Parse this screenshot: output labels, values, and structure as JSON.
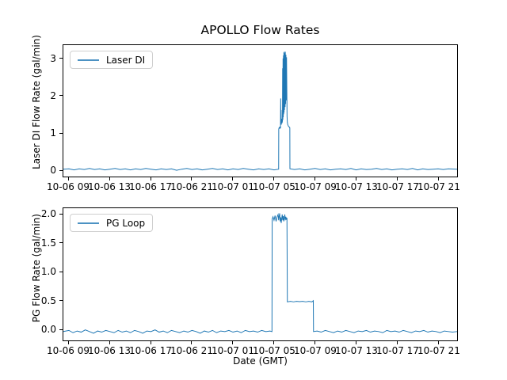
{
  "figure": {
    "background": "#ffffff"
  },
  "chart_data": [
    {
      "type": "line",
      "subplot": "top",
      "title": "APOLLO Flow Rates",
      "ylabel": "Laser DI Flow Rate (gal/min)",
      "legend": {
        "label": "Laser DI",
        "position": "upper left"
      },
      "line_color": "#1f77b4",
      "grid": false,
      "xlim_hours": [
        8.46,
        46.85
      ],
      "ylim": [
        -0.19,
        3.38
      ],
      "yticks": [
        0,
        1,
        2,
        3
      ],
      "ytick_labels": [
        "0",
        "1",
        "2",
        "3"
      ],
      "xtick_hours": [
        9,
        13,
        17,
        21,
        25,
        29,
        33,
        37,
        41,
        45
      ],
      "xtick_labels": [
        "10-06 09",
        "10-06 13",
        "10-06 17",
        "10-06 21",
        "10-07 01",
        "10-07 05",
        "10-07 09",
        "10-07 13",
        "10-07 17",
        "10-07 21"
      ],
      "series": [
        {
          "name": "Laser DI",
          "points": [
            [
              8.46,
              0.01
            ],
            [
              9,
              0.02
            ],
            [
              9.5,
              -0.01
            ],
            [
              10,
              0.02
            ],
            [
              10.5,
              0
            ],
            [
              11,
              0.03
            ],
            [
              11.5,
              0
            ],
            [
              12,
              0.02
            ],
            [
              12.5,
              -0.01
            ],
            [
              13,
              0.01
            ],
            [
              13.5,
              0.03
            ],
            [
              14,
              0
            ],
            [
              14.5,
              0.02
            ],
            [
              15,
              -0.01
            ],
            [
              15.5,
              0.02
            ],
            [
              16,
              0
            ],
            [
              16.5,
              0.03
            ],
            [
              17,
              0.01
            ],
            [
              17.5,
              -0.01
            ],
            [
              18,
              0.02
            ],
            [
              18.5,
              0
            ],
            [
              19,
              0.02
            ],
            [
              19.5,
              -0.02
            ],
            [
              20,
              0.01
            ],
            [
              20.5,
              0.03
            ],
            [
              21,
              0
            ],
            [
              21.5,
              0.02
            ],
            [
              22,
              -0.01
            ],
            [
              22.5,
              0.01
            ],
            [
              23,
              0.03
            ],
            [
              23.5,
              0
            ],
            [
              24,
              0.02
            ],
            [
              24.5,
              -0.01
            ],
            [
              25,
              0.02
            ],
            [
              25.5,
              0
            ],
            [
              26,
              0.03
            ],
            [
              26.5,
              0.01
            ],
            [
              27,
              -0.01
            ],
            [
              27.5,
              0.02
            ],
            [
              28,
              0
            ],
            [
              28.5,
              0.02
            ],
            [
              29,
              -0.01
            ],
            [
              29.45,
              0.01
            ],
            [
              29.46,
              1.1
            ],
            [
              29.5,
              1.14
            ],
            [
              29.55,
              1.12
            ],
            [
              29.6,
              1.16
            ],
            [
              29.63,
              1.12
            ],
            [
              29.65,
              1.93
            ],
            [
              29.67,
              1.3
            ],
            [
              29.69,
              1.62
            ],
            [
              29.71,
              1.22
            ],
            [
              29.74,
              1.38
            ],
            [
              29.78,
              1.26
            ],
            [
              29.82,
              1.32
            ],
            [
              29.84,
              2.75
            ],
            [
              29.86,
              1.35
            ],
            [
              29.88,
              3.02
            ],
            [
              29.9,
              1.42
            ],
            [
              29.92,
              3.1
            ],
            [
              29.94,
              1.5
            ],
            [
              29.96,
              3.18
            ],
            [
              29.98,
              1.55
            ],
            [
              30,
              3.2
            ],
            [
              30.02,
              1.62
            ],
            [
              30.05,
              3.16
            ],
            [
              30.08,
              1.7
            ],
            [
              30.1,
              3.2
            ],
            [
              30.13,
              1.78
            ],
            [
              30.16,
              3.12
            ],
            [
              30.19,
              1.88
            ],
            [
              30.22,
              3.05
            ],
            [
              30.25,
              2.1
            ],
            [
              30.27,
              1.45
            ],
            [
              30.3,
              1.28
            ],
            [
              30.34,
              1.22
            ],
            [
              30.4,
              1.18
            ],
            [
              30.46,
              1.16
            ],
            [
              30.52,
              1.15
            ],
            [
              30.54,
              1.13
            ],
            [
              30.55,
              0.02
            ],
            [
              31,
              0
            ],
            [
              31.5,
              0.02
            ],
            [
              32,
              -0.01
            ],
            [
              32.5,
              0.01
            ],
            [
              33,
              0.03
            ],
            [
              33.5,
              0
            ],
            [
              34,
              0.02
            ],
            [
              34.5,
              -0.01
            ],
            [
              35,
              0.01
            ],
            [
              35.5,
              0.02
            ],
            [
              36,
              0
            ],
            [
              36.5,
              0.03
            ],
            [
              37,
              -0.01
            ],
            [
              37.5,
              0.02
            ],
            [
              38,
              0
            ],
            [
              38.5,
              0.01
            ],
            [
              39,
              0.03
            ],
            [
              39.5,
              0
            ],
            [
              40,
              0.02
            ],
            [
              40.5,
              -0.01
            ],
            [
              41,
              0.01
            ],
            [
              41.5,
              0.02
            ],
            [
              42,
              0
            ],
            [
              42.5,
              0.03
            ],
            [
              43,
              -0.01
            ],
            [
              43.5,
              0.02
            ],
            [
              44,
              0
            ],
            [
              44.5,
              0.01
            ],
            [
              45,
              0.02
            ],
            [
              45.5,
              0
            ],
            [
              46,
              0.02
            ],
            [
              46.85,
              0.01
            ]
          ]
        }
      ]
    },
    {
      "type": "line",
      "subplot": "bottom",
      "ylabel": "PG Flow Rate (gal/min)",
      "xlabel": "Date (GMT)",
      "legend": {
        "label": "PG Loop",
        "position": "upper left"
      },
      "line_color": "#1f77b4",
      "grid": false,
      "xlim_hours": [
        8.46,
        46.85
      ],
      "ylim": [
        -0.205,
        2.11
      ],
      "yticks": [
        0,
        0.5,
        1,
        1.5,
        2
      ],
      "ytick_labels": [
        "0.0",
        "0.5",
        "1.0",
        "1.5",
        "2.0"
      ],
      "xtick_hours": [
        9,
        13,
        17,
        21,
        25,
        29,
        33,
        37,
        41,
        45
      ],
      "xtick_labels": [
        "10-06 09",
        "10-06 13",
        "10-06 17",
        "10-06 21",
        "10-07 01",
        "10-07 05",
        "10-07 09",
        "10-07 13",
        "10-07 17",
        "10-07 21"
      ],
      "series": [
        {
          "name": "PG Loop",
          "points": [
            [
              8.46,
              -0.05
            ],
            [
              9,
              -0.03
            ],
            [
              9.4,
              -0.07
            ],
            [
              9.8,
              -0.04
            ],
            [
              10.2,
              -0.06
            ],
            [
              10.6,
              -0.02
            ],
            [
              11,
              -0.05
            ],
            [
              11.4,
              -0.08
            ],
            [
              11.8,
              -0.04
            ],
            [
              12.2,
              -0.06
            ],
            [
              12.6,
              -0.03
            ],
            [
              13,
              -0.05
            ],
            [
              13.4,
              -0.07
            ],
            [
              13.8,
              -0.03
            ],
            [
              14.2,
              -0.06
            ],
            [
              14.6,
              -0.04
            ],
            [
              15,
              -0.07
            ],
            [
              15.4,
              -0.03
            ],
            [
              15.8,
              -0.05
            ],
            [
              16.2,
              -0.08
            ],
            [
              16.6,
              -0.04
            ],
            [
              17,
              -0.05
            ],
            [
              17.4,
              -0.02
            ],
            [
              17.8,
              -0.06
            ],
            [
              18.2,
              -0.04
            ],
            [
              18.6,
              -0.07
            ],
            [
              19,
              -0.03
            ],
            [
              19.4,
              -0.05
            ],
            [
              19.8,
              -0.07
            ],
            [
              20.2,
              -0.04
            ],
            [
              20.6,
              -0.06
            ],
            [
              21,
              -0.03
            ],
            [
              21.4,
              -0.05
            ],
            [
              21.8,
              -0.08
            ],
            [
              22.2,
              -0.04
            ],
            [
              22.6,
              -0.06
            ],
            [
              23,
              -0.03
            ],
            [
              23.4,
              -0.07
            ],
            [
              23.8,
              -0.04
            ],
            [
              24.2,
              -0.05
            ],
            [
              24.6,
              -0.03
            ],
            [
              25,
              -0.06
            ],
            [
              25.4,
              -0.04
            ],
            [
              25.8,
              -0.07
            ],
            [
              26.2,
              -0.03
            ],
            [
              26.6,
              -0.05
            ],
            [
              27,
              -0.04
            ],
            [
              27.4,
              -0.06
            ],
            [
              27.8,
              -0.03
            ],
            [
              28.2,
              -0.05
            ],
            [
              28.6,
              -0.04
            ],
            [
              28.8,
              -0.05
            ],
            [
              28.82,
              1.92
            ],
            [
              28.9,
              1.96
            ],
            [
              29,
              1.9
            ],
            [
              29.1,
              1.98
            ],
            [
              29.2,
              1.88
            ],
            [
              29.3,
              1.96
            ],
            [
              29.4,
              2.0
            ],
            [
              29.45,
              1.9
            ],
            [
              29.5,
              1.97
            ],
            [
              29.55,
              2.02
            ],
            [
              29.6,
              1.88
            ],
            [
              29.65,
              1.95
            ],
            [
              29.7,
              1.85
            ],
            [
              29.75,
              1.93
            ],
            [
              29.8,
              2.0
            ],
            [
              29.85,
              1.9
            ],
            [
              29.9,
              1.97
            ],
            [
              29.95,
              1.88
            ],
            [
              30,
              1.94
            ],
            [
              30.05,
              2.0
            ],
            [
              30.1,
              1.9
            ],
            [
              30.15,
              1.96
            ],
            [
              30.2,
              1.92
            ],
            [
              30.26,
              1.94
            ],
            [
              30.3,
              0.47
            ],
            [
              30.6,
              0.48
            ],
            [
              30.9,
              0.47
            ],
            [
              31.2,
              0.48
            ],
            [
              31.5,
              0.475
            ],
            [
              31.8,
              0.48
            ],
            [
              32.1,
              0.47
            ],
            [
              32.4,
              0.48
            ],
            [
              32.7,
              0.47
            ],
            [
              32.83,
              0.49
            ],
            [
              32.85,
              -0.05
            ],
            [
              33.2,
              -0.04
            ],
            [
              33.6,
              -0.06
            ],
            [
              34,
              -0.03
            ],
            [
              34.4,
              -0.05
            ],
            [
              34.8,
              -0.07
            ],
            [
              35.2,
              -0.04
            ],
            [
              35.6,
              -0.06
            ],
            [
              36,
              -0.03
            ],
            [
              36.4,
              -0.05
            ],
            [
              36.8,
              -0.07
            ],
            [
              37.2,
              -0.04
            ],
            [
              37.6,
              -0.05
            ],
            [
              38,
              -0.03
            ],
            [
              38.4,
              -0.06
            ],
            [
              38.8,
              -0.04
            ],
            [
              39.2,
              -0.05
            ],
            [
              39.6,
              -0.07
            ],
            [
              40,
              -0.03
            ],
            [
              40.4,
              -0.05
            ],
            [
              40.8,
              -0.04
            ],
            [
              41.2,
              -0.06
            ],
            [
              41.6,
              -0.03
            ],
            [
              42,
              -0.05
            ],
            [
              42.4,
              -0.07
            ],
            [
              42.8,
              -0.04
            ],
            [
              43.2,
              -0.05
            ],
            [
              43.6,
              -0.03
            ],
            [
              44,
              -0.06
            ],
            [
              44.4,
              -0.04
            ],
            [
              44.8,
              -0.05
            ],
            [
              45.2,
              -0.07
            ],
            [
              45.6,
              -0.04
            ],
            [
              46,
              -0.05
            ],
            [
              46.4,
              -0.06
            ],
            [
              46.85,
              -0.05
            ]
          ]
        }
      ]
    }
  ]
}
